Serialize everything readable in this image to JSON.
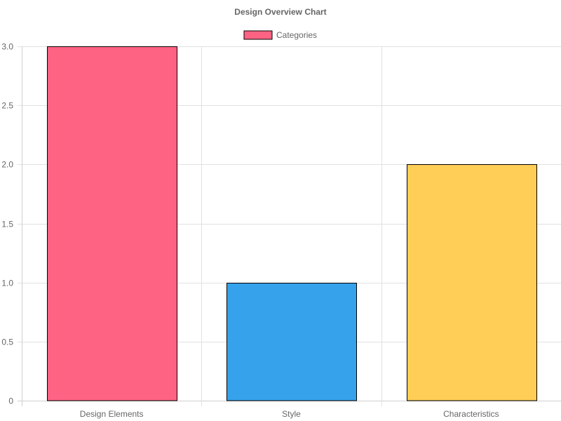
{
  "chart_data": {
    "type": "bar",
    "title": "Design Overview Chart",
    "categories": [
      "Design Elements",
      "Style",
      "Characteristics"
    ],
    "series": [
      {
        "name": "Categories",
        "values": [
          3,
          1,
          2
        ]
      }
    ],
    "bar_colors": [
      "#ff6384",
      "#36a2eb",
      "#ffce56"
    ],
    "legend_color": "#ff6384",
    "bar_border_color": "#000000",
    "xlabel": "",
    "ylabel": "",
    "ylim": [
      0,
      3
    ],
    "y_ticks": [
      "0",
      "0.5",
      "1.0",
      "1.5",
      "2.0",
      "2.5",
      "3.0"
    ],
    "y_tick_values": [
      0,
      0.5,
      1,
      1.5,
      2,
      2.5,
      3
    ],
    "grid": true,
    "legend_position": "top"
  }
}
